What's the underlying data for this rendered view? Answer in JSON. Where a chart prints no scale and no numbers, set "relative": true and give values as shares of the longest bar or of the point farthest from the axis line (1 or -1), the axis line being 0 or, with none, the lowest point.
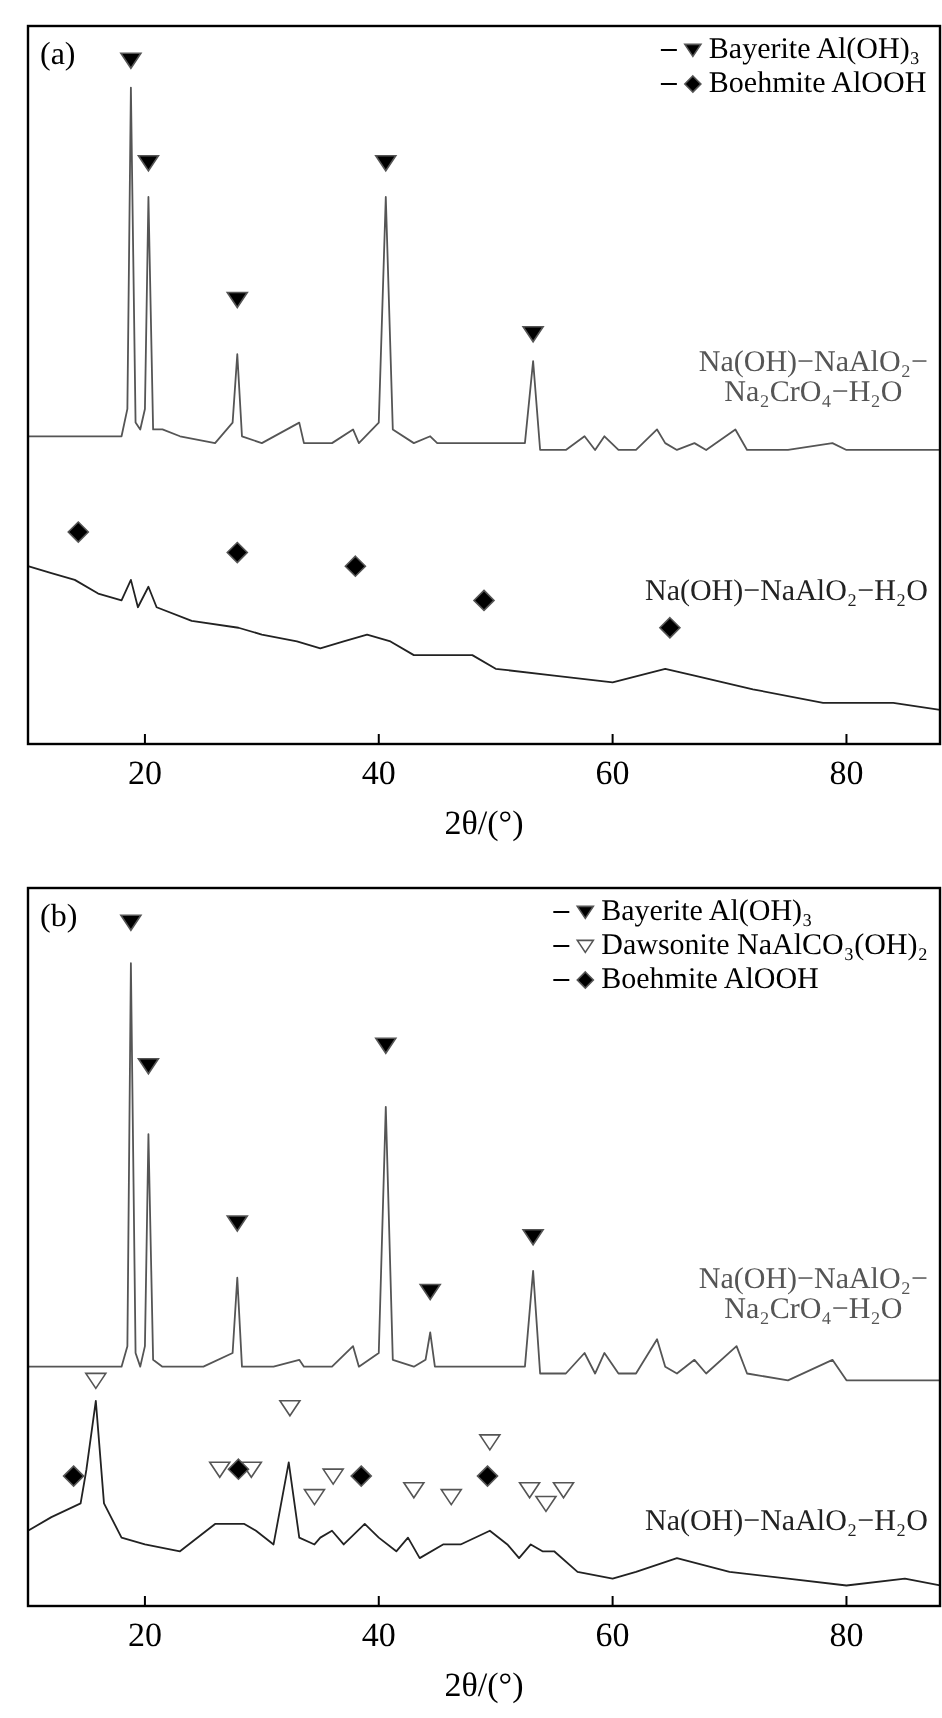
{
  "chart_data": [
    {
      "type": "line",
      "title": "(a)",
      "xlabel": "2θ/(°)",
      "relative": true,
      "xlim": [
        10,
        88
      ],
      "xticks": [
        20,
        40,
        60,
        80
      ],
      "tick_labels": "x",
      "legend": "top right",
      "grid": false,
      "series": [
        {
          "name": "Na(OH)−NaAlO₂−Na₂CrO₄−H₂O",
          "color": "#555555",
          "x": [
            10,
            15,
            18,
            18.5,
            18.8,
            19.2,
            19.6,
            20,
            20.3,
            20.7,
            21.5,
            23,
            26,
            27.5,
            27.9,
            28.3,
            30,
            33.2,
            33.6,
            36,
            37.8,
            38.3,
            40,
            40.6,
            41.2,
            43,
            44.4,
            45,
            47,
            49,
            52.5,
            53.2,
            53.8,
            56,
            57.6,
            58.5,
            59.3,
            60.5,
            62,
            63.8,
            64.5,
            65.5,
            67,
            68,
            70.5,
            71.5,
            75,
            78.8,
            80,
            88
          ],
          "values": [
            0.45,
            0.45,
            0.45,
            0.49,
            0.96,
            0.47,
            0.46,
            0.49,
            0.8,
            0.46,
            0.46,
            0.45,
            0.44,
            0.47,
            0.57,
            0.45,
            0.44,
            0.47,
            0.44,
            0.44,
            0.46,
            0.44,
            0.47,
            0.8,
            0.46,
            0.44,
            0.45,
            0.44,
            0.44,
            0.44,
            0.44,
            0.56,
            0.43,
            0.43,
            0.45,
            0.43,
            0.45,
            0.43,
            0.43,
            0.46,
            0.44,
            0.43,
            0.44,
            0.43,
            0.46,
            0.43,
            0.43,
            0.44,
            0.43,
            0.43
          ]
        },
        {
          "name": "Na(OH)−NaAlO₂−H₂O",
          "color": "#222222",
          "x": [
            10,
            12,
            14,
            16,
            18,
            18.8,
            19.4,
            20.3,
            21,
            24,
            28,
            30,
            33,
            35,
            37,
            39,
            41,
            43,
            46,
            48,
            50,
            55,
            60,
            64.5,
            67,
            72,
            78,
            84,
            88
          ],
          "values": [
            0.26,
            0.25,
            0.24,
            0.22,
            0.21,
            0.24,
            0.2,
            0.23,
            0.2,
            0.18,
            0.17,
            0.16,
            0.15,
            0.14,
            0.15,
            0.16,
            0.15,
            0.13,
            0.13,
            0.13,
            0.11,
            0.1,
            0.09,
            0.11,
            0.1,
            0.08,
            0.06,
            0.06,
            0.05
          ]
        },
        {
          "name": "Bayerite Al(OH)₃",
          "type": "scatter",
          "marker": "triangle",
          "color": "#000000",
          "x": [
            18.8,
            20.3,
            27.9,
            40.6,
            53.2
          ],
          "values": [
            1,
            0.85,
            0.65,
            0.85,
            0.6
          ]
        },
        {
          "name": "Boehmite AlOOH",
          "type": "scatter",
          "marker": "diamond",
          "color": "#000000",
          "x": [
            14.3,
            27.9,
            38,
            49,
            64.9
          ],
          "values": [
            0.31,
            0.28,
            0.26,
            0.21,
            0.17
          ]
        }
      ]
    },
    {
      "type": "line",
      "title": "(b)",
      "xlabel": "2θ/(°)",
      "relative": true,
      "xlim": [
        10,
        88
      ],
      "xticks": [
        20,
        40,
        60,
        80
      ],
      "tick_labels": "x",
      "legend": "top right",
      "grid": false,
      "series": [
        {
          "name": "Na(OH)−NaAlO₂−Na₂CrO₄−H₂O",
          "color": "#555555",
          "x": [
            10,
            15,
            18,
            18.5,
            18.8,
            19.2,
            19.6,
            20,
            20.3,
            20.7,
            21.5,
            25,
            27.5,
            27.9,
            28.3,
            31,
            33.2,
            33.6,
            36,
            37.8,
            38.3,
            40,
            40.6,
            41.2,
            43,
            44,
            44.4,
            44.8,
            47,
            50,
            52.5,
            53.2,
            53.8,
            56,
            57.6,
            58.5,
            59.3,
            60.5,
            62,
            63.8,
            64.5,
            65.5,
            67,
            68,
            70.6,
            71.5,
            75,
            78.8,
            80,
            88
          ],
          "values": [
            0.35,
            0.35,
            0.35,
            0.38,
            0.94,
            0.37,
            0.35,
            0.38,
            0.69,
            0.36,
            0.35,
            0.35,
            0.37,
            0.48,
            0.35,
            0.35,
            0.36,
            0.35,
            0.35,
            0.38,
            0.35,
            0.37,
            0.73,
            0.36,
            0.35,
            0.36,
            0.4,
            0.35,
            0.35,
            0.35,
            0.35,
            0.49,
            0.34,
            0.34,
            0.37,
            0.34,
            0.37,
            0.34,
            0.34,
            0.39,
            0.35,
            0.34,
            0.36,
            0.34,
            0.38,
            0.34,
            0.33,
            0.36,
            0.33,
            0.33
          ]
        },
        {
          "name": "Na(OH)−NaAlO₂−H₂O",
          "color": "#222222",
          "x": [
            10,
            12,
            14.5,
            15,
            15.8,
            16.5,
            18,
            20,
            23,
            26,
            27,
            28.5,
            29.5,
            31,
            32.3,
            33.2,
            34.5,
            35,
            36,
            37,
            38.8,
            40,
            41.5,
            42.5,
            43.5,
            45.5,
            47,
            49.5,
            51,
            52,
            53,
            54,
            55,
            57,
            60,
            62,
            65.5,
            70,
            75,
            80,
            85,
            88
          ],
          "values": [
            0.11,
            0.13,
            0.15,
            0.2,
            0.3,
            0.15,
            0.1,
            0.09,
            0.08,
            0.12,
            0.12,
            0.12,
            0.11,
            0.09,
            0.21,
            0.1,
            0.09,
            0.1,
            0.11,
            0.09,
            0.12,
            0.1,
            0.08,
            0.1,
            0.07,
            0.09,
            0.09,
            0.11,
            0.09,
            0.07,
            0.09,
            0.08,
            0.08,
            0.05,
            0.04,
            0.05,
            0.07,
            0.05,
            0.04,
            0.03,
            0.04,
            0.03
          ]
        },
        {
          "name": "Bayerite Al(OH)₃",
          "type": "scatter",
          "marker": "triangle",
          "color": "#000000",
          "x": [
            18.8,
            20.3,
            27.9,
            40.6,
            44.4,
            53.2
          ],
          "values": [
            1,
            0.79,
            0.56,
            0.82,
            0.46,
            0.54
          ]
        },
        {
          "name": "Dawsonite NaAlCO₃(OH)₂",
          "type": "scatter",
          "marker": "triangle",
          "color": "#ffffff",
          "x": [
            15.8,
            26.4,
            29.1,
            32.4,
            34.5,
            36.1,
            43,
            46.2,
            49.5,
            52.9,
            54.3,
            55.8
          ],
          "values": [
            0.33,
            0.2,
            0.2,
            0.29,
            0.16,
            0.19,
            0.17,
            0.16,
            0.24,
            0.17,
            0.15,
            0.17
          ]
        },
        {
          "name": "Boehmite AlOOH",
          "type": "scatter",
          "marker": "diamond",
          "color": "#000000",
          "x": [
            13.9,
            28,
            38.5,
            49.3
          ],
          "values": [
            0.19,
            0.2,
            0.19,
            0.19
          ]
        }
      ]
    }
  ]
}
